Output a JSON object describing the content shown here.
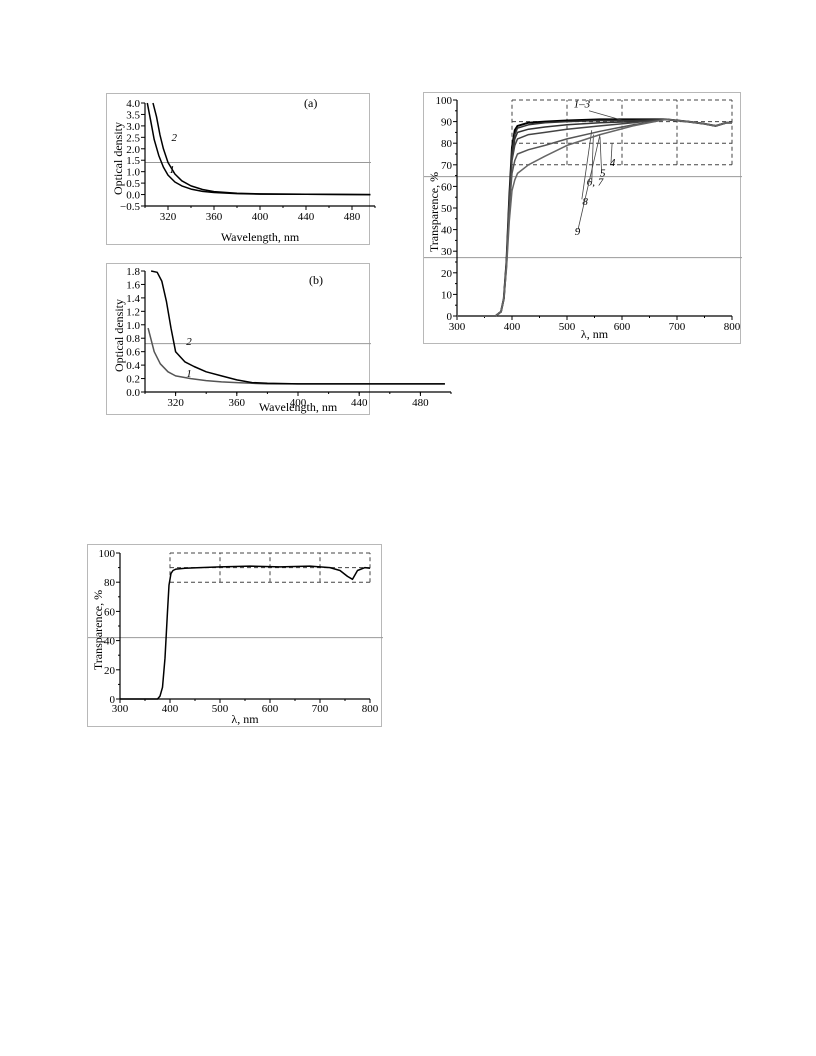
{
  "chart_data": [
    {
      "id": "a",
      "type": "line",
      "panel_label": "(a)",
      "xlabel": "Wavelength, nm",
      "ylabel": "Optical density",
      "xlim": [
        300,
        500
      ],
      "ylim": [
        -0.5,
        4.0
      ],
      "x_ticks": [
        320,
        360,
        400,
        440,
        480
      ],
      "y_ticks": [
        -0.5,
        0.0,
        0.5,
        1.0,
        1.5,
        2.0,
        2.5,
        3.0,
        3.5,
        4.0
      ],
      "y_tick_labels": [
        "−0.5",
        "0.0",
        "0.5",
        "1.0",
        "1.5",
        "2.0",
        "2.5",
        "3.0",
        "3.5",
        "4.0"
      ],
      "grid": false,
      "series": [
        {
          "name": "1",
          "color": "#000000",
          "x": [
            302,
            305,
            308,
            312,
            316,
            320,
            326,
            332,
            340,
            350,
            360,
            380,
            400,
            440,
            496
          ],
          "y": [
            4.0,
            3.2,
            2.4,
            1.7,
            1.2,
            0.85,
            0.55,
            0.38,
            0.24,
            0.14,
            0.09,
            0.04,
            0.02,
            0.01,
            0.0
          ]
        },
        {
          "name": "2",
          "color": "#000000",
          "x": [
            307,
            310,
            313,
            316,
            320,
            326,
            332,
            340,
            350,
            360,
            380,
            400,
            440,
            496
          ],
          "y": [
            4.0,
            3.4,
            2.6,
            2.0,
            1.4,
            0.9,
            0.6,
            0.38,
            0.22,
            0.13,
            0.06,
            0.03,
            0.01,
            0.0
          ]
        }
      ]
    },
    {
      "id": "b",
      "type": "line",
      "panel_label": "(b)",
      "xlabel": "Wavelength, nm",
      "ylabel": "Optical density",
      "xlim": [
        300,
        500
      ],
      "ylim": [
        0.0,
        1.8
      ],
      "x_ticks": [
        320,
        360,
        400,
        440,
        480
      ],
      "y_ticks": [
        0.0,
        0.2,
        0.4,
        0.6,
        0.8,
        1.0,
        1.2,
        1.4,
        1.6,
        1.8
      ],
      "y_tick_labels": [
        "0.0",
        "0.2",
        "0.4",
        "0.6",
        "0.8",
        "1.0",
        "1.2",
        "1.4",
        "1.6",
        "1.8"
      ],
      "grid": false,
      "series": [
        {
          "name": "1",
          "color": "#555555",
          "x": [
            302,
            306,
            310,
            315,
            320,
            330,
            340,
            350,
            360,
            370,
            380,
            400,
            440,
            496
          ],
          "y": [
            0.95,
            0.6,
            0.42,
            0.3,
            0.24,
            0.2,
            0.17,
            0.15,
            0.14,
            0.13,
            0.12,
            0.12,
            0.12,
            0.12
          ]
        },
        {
          "name": "2",
          "color": "#000000",
          "x": [
            304,
            308,
            311,
            314,
            317,
            320,
            326,
            332,
            340,
            350,
            360,
            370,
            380,
            400,
            440,
            496
          ],
          "y": [
            1.8,
            1.78,
            1.65,
            1.35,
            0.95,
            0.6,
            0.45,
            0.38,
            0.3,
            0.24,
            0.18,
            0.14,
            0.13,
            0.12,
            0.12,
            0.12
          ]
        }
      ]
    },
    {
      "id": "c",
      "type": "line",
      "panel_label": "",
      "xlabel": "λ, nm",
      "ylabel": "Transparence, %",
      "xlim": [
        300,
        800
      ],
      "ylim": [
        0,
        100
      ],
      "x_ticks": [
        300,
        400,
        500,
        600,
        700,
        800
      ],
      "y_ticks": [
        0,
        10,
        20,
        30,
        40,
        50,
        60,
        70,
        80,
        90,
        100
      ],
      "y_tick_labels": [
        "0",
        "10",
        "20",
        "30",
        "40",
        "50",
        "60",
        "70",
        "80",
        "90",
        "100"
      ],
      "grid": true,
      "series": [
        {
          "name": "1–3",
          "color": "#000000",
          "x": [
            300,
            370,
            380,
            385,
            390,
            395,
            400,
            405,
            410,
            430,
            460,
            500,
            560,
            620,
            680,
            720,
            750,
            770,
            790,
            800
          ],
          "y": [
            0,
            0,
            2,
            8,
            25,
            55,
            78,
            86,
            88,
            89.5,
            90,
            90.5,
            91,
            91,
            91,
            90,
            89,
            88,
            89.5,
            89.5
          ]
        },
        {
          "name": "4",
          "color": "#333333",
          "x": [
            300,
            370,
            380,
            385,
            390,
            395,
            400,
            405,
            410,
            430,
            460,
            500,
            560,
            620,
            680,
            720,
            750,
            770,
            790,
            800
          ],
          "y": [
            0,
            0,
            2,
            8,
            25,
            54,
            76,
            84,
            87,
            88.5,
            89.5,
            90,
            90.5,
            90.5,
            91,
            90,
            89,
            88,
            89.5,
            89.5
          ]
        },
        {
          "name": "5",
          "color": "#333333",
          "x": [
            300,
            370,
            380,
            385,
            390,
            395,
            400,
            405,
            410,
            430,
            460,
            500,
            560,
            620,
            680,
            720,
            750,
            770,
            790,
            800
          ],
          "y": [
            0,
            0,
            2,
            8,
            25,
            53,
            74,
            82,
            85,
            86.5,
            87.5,
            88.5,
            89.5,
            90,
            91,
            90,
            89,
            88,
            89.5,
            89.5
          ]
        },
        {
          "name": "6, 7",
          "color": "#444444",
          "x": [
            300,
            370,
            380,
            385,
            390,
            395,
            400,
            405,
            410,
            430,
            460,
            500,
            560,
            620,
            680,
            720,
            750,
            770,
            790,
            800
          ],
          "y": [
            0,
            0,
            2,
            8,
            25,
            52,
            72,
            79,
            82,
            84,
            85,
            86.5,
            88,
            89.5,
            91,
            90,
            89,
            88,
            89.5,
            89.5
          ]
        },
        {
          "name": "8",
          "color": "#555555",
          "x": [
            300,
            370,
            380,
            385,
            390,
            395,
            400,
            405,
            410,
            430,
            460,
            500,
            560,
            620,
            680,
            720,
            750,
            770,
            790,
            800
          ],
          "y": [
            0,
            0,
            2,
            8,
            24,
            50,
            66,
            72,
            75,
            77,
            79,
            82,
            85.5,
            88.5,
            91,
            90,
            89,
            88,
            89.5,
            89.5
          ]
        },
        {
          "name": "9",
          "color": "#666666",
          "x": [
            300,
            370,
            380,
            385,
            390,
            395,
            400,
            405,
            410,
            430,
            460,
            500,
            560,
            620,
            680,
            720,
            750,
            770,
            790,
            800
          ],
          "y": [
            0,
            0,
            2,
            8,
            22,
            44,
            58,
            63,
            66,
            70,
            74,
            79,
            84,
            88,
            91,
            90,
            89,
            88,
            89.5,
            89.5
          ]
        }
      ]
    },
    {
      "id": "d",
      "type": "line",
      "panel_label": "",
      "xlabel": "λ, nm",
      "ylabel": "Transparence, %",
      "xlim": [
        300,
        800
      ],
      "ylim": [
        0,
        100
      ],
      "x_ticks": [
        300,
        400,
        500,
        600,
        700,
        800
      ],
      "y_ticks": [
        0,
        20,
        40,
        60,
        80,
        100
      ],
      "y_tick_labels": [
        "0",
        "20",
        "40",
        "60",
        "80",
        "100"
      ],
      "grid": true,
      "series": [
        {
          "name": "",
          "color": "#000000",
          "x": [
            300,
            375,
            380,
            385,
            390,
            395,
            398,
            402,
            406,
            412,
            430,
            460,
            500,
            560,
            620,
            680,
            720,
            740,
            755,
            765,
            775,
            790,
            800
          ],
          "y": [
            0,
            0,
            2,
            8,
            28,
            60,
            78,
            86,
            88,
            89,
            89.5,
            90,
            90.5,
            91,
            90.5,
            91,
            90,
            88,
            84,
            82,
            88,
            90,
            89.5
          ]
        }
      ]
    }
  ]
}
